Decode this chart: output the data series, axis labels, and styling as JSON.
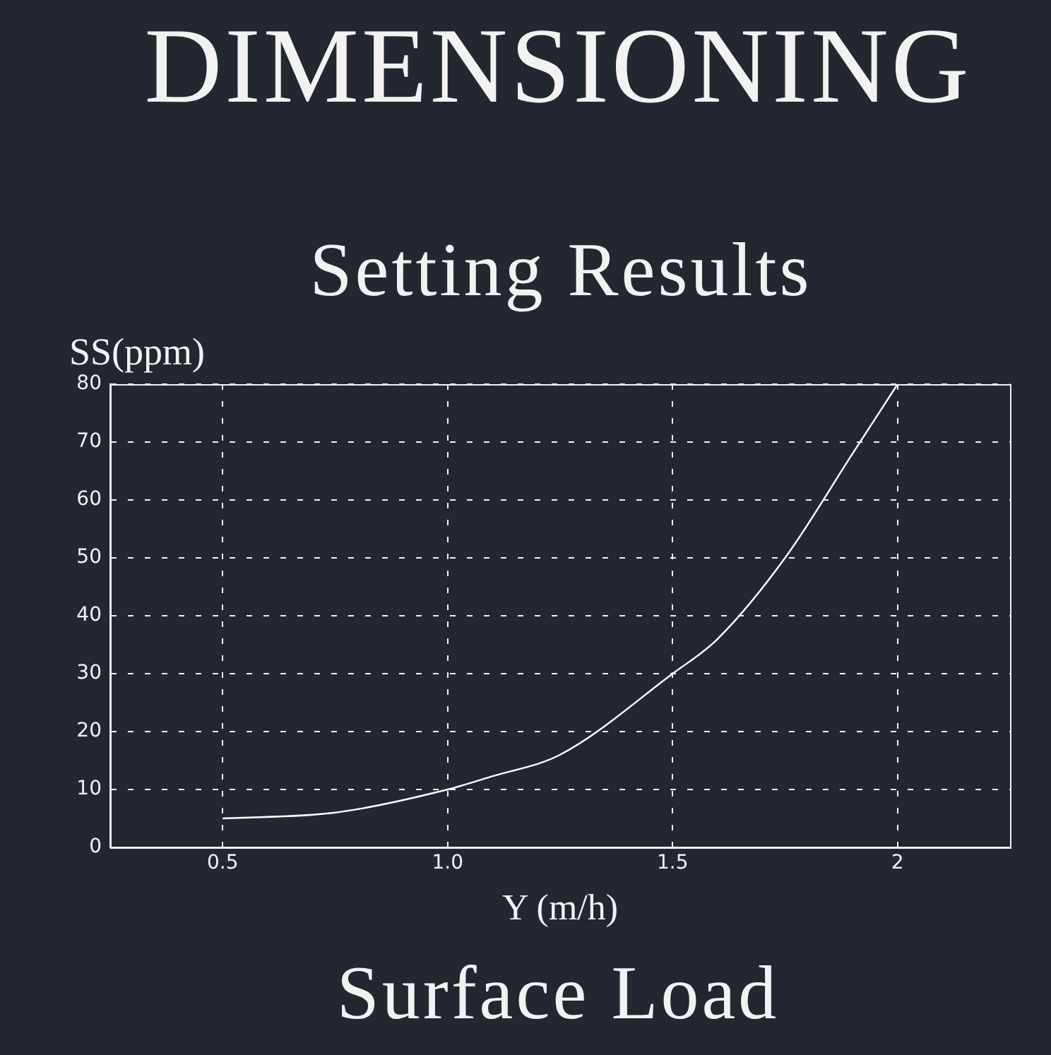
{
  "chart_data": {
    "type": "line",
    "title": "DIMENSIONING",
    "subtitle": "Setting Results",
    "xlabel": "Y (m/h)",
    "ylabel": "SS(ppm)",
    "annotations": [
      "Surface Load"
    ],
    "x": [
      0.5,
      0.75,
      1.0,
      1.1,
      1.25,
      1.5,
      1.6,
      1.75,
      1.9,
      2.0
    ],
    "series": [
      {
        "color": "#ffffff",
        "values": [
          5,
          6,
          10,
          12.3,
          16,
          30,
          36,
          50,
          68,
          80
        ]
      }
    ],
    "xlim": [
      0.25,
      2.25
    ],
    "xticks": [
      {
        "value": 0.5,
        "label": "0.5"
      },
      {
        "value": 1.0,
        "label": "1.0"
      },
      {
        "value": 1.5,
        "label": "1.5"
      },
      {
        "value": 2,
        "label": "2"
      }
    ],
    "ylim": [
      0,
      80
    ],
    "yticks": [
      0,
      10,
      20,
      30,
      40,
      50,
      60,
      70,
      80
    ],
    "grid": true,
    "legend": false,
    "marker": "none",
    "line_style": "solid"
  }
}
